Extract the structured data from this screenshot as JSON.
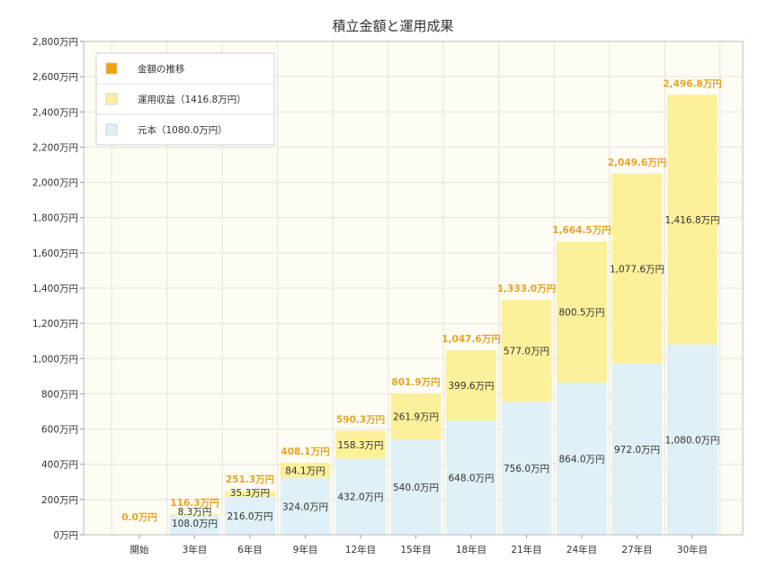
{
  "chart_data": {
    "type": "bar",
    "stacked": true,
    "title": "積立金額と運用成果",
    "categories": [
      "開始",
      "3年目",
      "6年目",
      "9年目",
      "12年目",
      "15年目",
      "18年目",
      "21年目",
      "24年目",
      "27年目",
      "30年目"
    ],
    "series": [
      {
        "name": "元本（1080.0万円）",
        "color": "#dff0f7",
        "values": [
          0,
          108.0,
          216.0,
          324.0,
          432.0,
          540.0,
          648.0,
          756.0,
          864.0,
          972.0,
          1080.0
        ],
        "labels": [
          "",
          "108.0万円",
          "216.0万円",
          "324.0万円",
          "432.0万円",
          "540.0万円",
          "648.0万円",
          "756.0万円",
          "864.0万円",
          "972.0万円",
          "1,080.0万円"
        ]
      },
      {
        "name": "運用収益（1416.8万円）",
        "color": "#fdf09a",
        "values": [
          0,
          8.3,
          35.3,
          84.1,
          158.3,
          261.9,
          399.6,
          577.0,
          800.5,
          1077.6,
          1416.8
        ],
        "labels": [
          "",
          "8.3万円",
          "35.3万円",
          "84.1万円",
          "158.3万円",
          "261.9万円",
          "399.6万円",
          "577.0万円",
          "800.5万円",
          "1,077.6万円",
          "1,416.8万円"
        ]
      }
    ],
    "line_series": {
      "name": "金額の推移",
      "color": "#f0a30a",
      "values": [
        0.0,
        116.3,
        251.3,
        408.1,
        590.3,
        801.9,
        1047.6,
        1333.0,
        1664.5,
        2049.6,
        2496.8
      ],
      "labels": [
        "0.0万円",
        "116.3万円",
        "251.3万円",
        "408.1万円",
        "590.3万円",
        "801.9万円",
        "1,047.6万円",
        "1,333.0万円",
        "1,664.5万円",
        "2,049.6万円",
        "2,496.8万円"
      ]
    },
    "ylim": [
      0,
      2800
    ],
    "yticks": [
      0,
      200,
      400,
      600,
      800,
      1000,
      1200,
      1400,
      1600,
      1800,
      2000,
      2200,
      2400,
      2600,
      2800
    ],
    "ytick_labels": [
      "0万円",
      "200万円",
      "400万円",
      "600万円",
      "800万円",
      "1,000万円",
      "1,200万円",
      "1,400万円",
      "1,600万円",
      "1,800万円",
      "2,000万円",
      "2,200万円",
      "2,400万円",
      "2,600万円",
      "2,800万円"
    ],
    "grid": true,
    "legend": {
      "placement": "top-left",
      "entries": [
        {
          "label": "金額の推移",
          "color": "#f0a30a"
        },
        {
          "label": "運用収益（1416.8万円）",
          "color": "#fdf09a"
        },
        {
          "label": "元本（1080.0万円）",
          "color": "#dff0f7"
        }
      ]
    },
    "colors": {
      "plot_background": "#fffdf3",
      "grid": "#e2e2e2",
      "axis": "#999999"
    }
  }
}
